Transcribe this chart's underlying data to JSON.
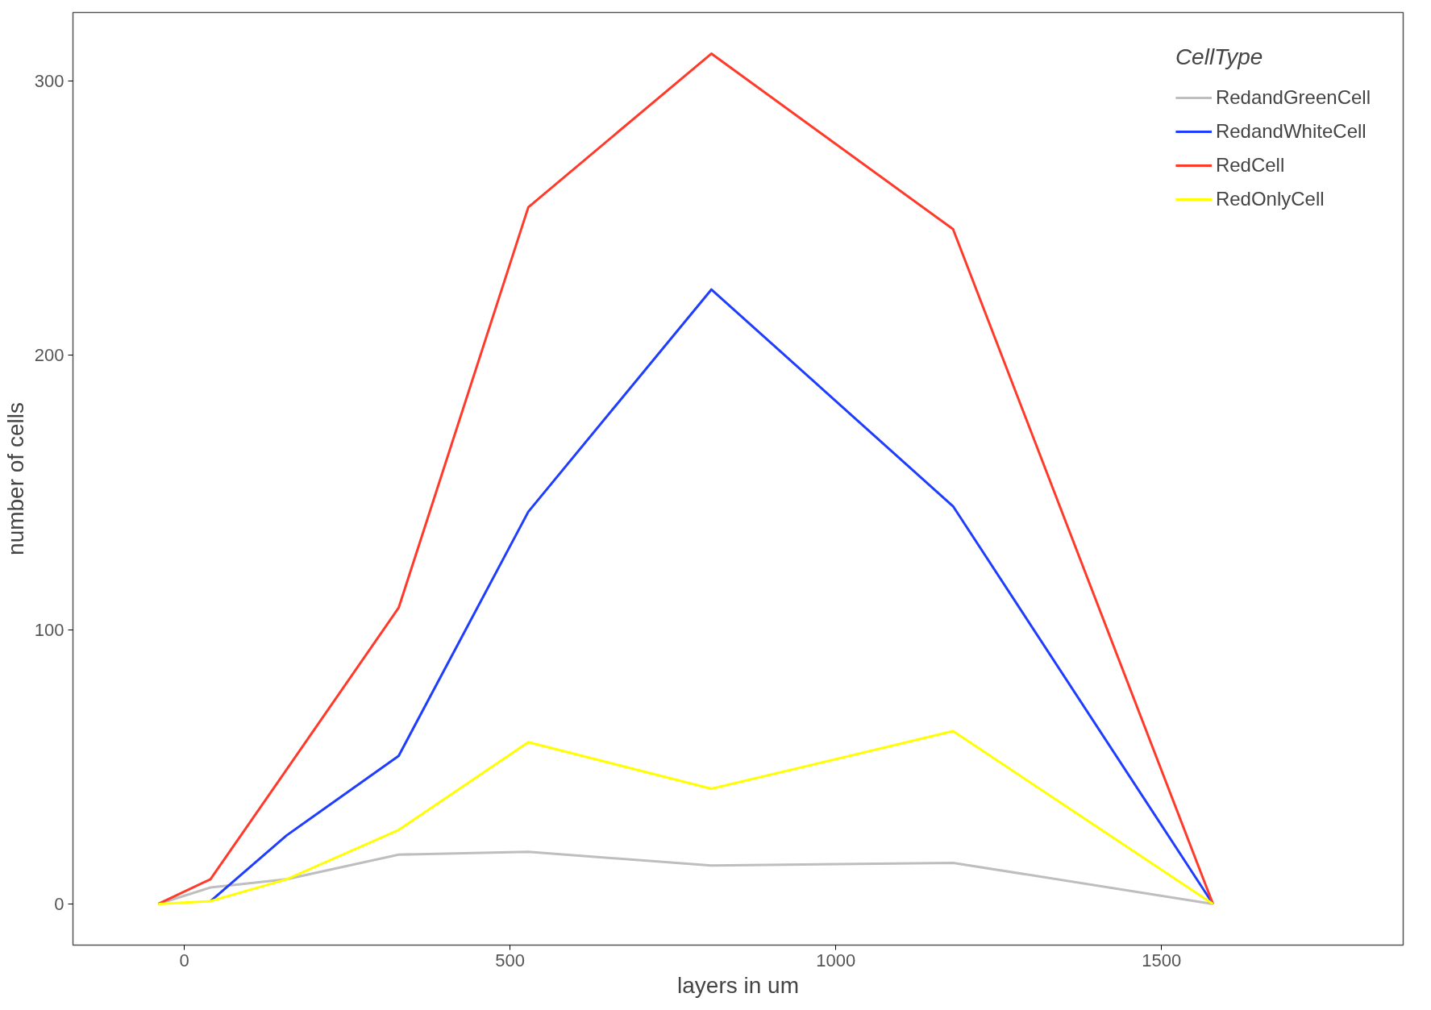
{
  "chart_data": {
    "type": "line",
    "xlabel": "layers in um",
    "ylabel": "number of cells",
    "legend_title": "CellType",
    "x": [
      -40,
      40,
      157,
      329,
      528,
      809,
      1180,
      1579
    ],
    "series": [
      {
        "name": "RedandGreenCell",
        "color": "#bebebe",
        "values": [
          0,
          6,
          9,
          18,
          19,
          14,
          15,
          0
        ]
      },
      {
        "name": "RedandWhiteCell",
        "color": "#1f3dff",
        "values": [
          null,
          1,
          25,
          54,
          143,
          224,
          145,
          0
        ]
      },
      {
        "name": "RedCell",
        "color": "#ff3a2a",
        "values": [
          0,
          9,
          49,
          108,
          254,
          310,
          246,
          0
        ]
      },
      {
        "name": "RedOnlyCell",
        "color": "#ffff00",
        "values": [
          0,
          1,
          9,
          27,
          59,
          42,
          63,
          0
        ]
      }
    ],
    "xlim": [
      -171,
      1871
    ],
    "ylim": [
      -15,
      325
    ],
    "xticks": [
      0,
      500,
      1000,
      1500
    ],
    "yticks": [
      0,
      100,
      200,
      300
    ],
    "grid": false,
    "legend": "top right",
    "marker": "none",
    "line_style": "solid"
  }
}
